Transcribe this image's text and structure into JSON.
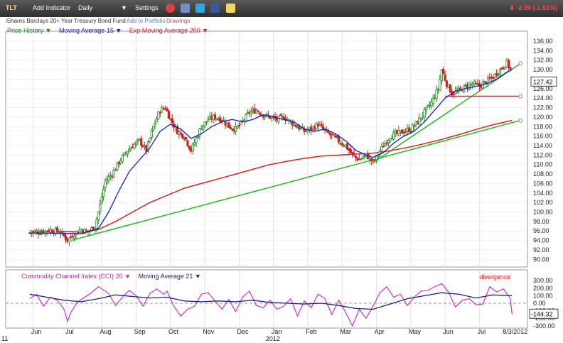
{
  "toolbar": {
    "symbol": "TLT",
    "add_indicator": "Add Indicator",
    "interval": "Daily",
    "interval_arrow": "▼",
    "settings": "Settings",
    "change": "-2.09 (-1.61%)",
    "change_arrow": "⬇",
    "icons": [
      "alarm-clock-icon",
      "compare-icon",
      "twitter-icon",
      "facebook-icon",
      "note-icon"
    ]
  },
  "subbar": {
    "description": "iShares Barclays 20+ Year Treasury Bond Fund",
    "add_portfolio": "Add to Portfolio",
    "drawings": "Drawings"
  },
  "legend_main": {
    "price_history": "Price History ▼",
    "ma15": "Moving Average 15 ▼",
    "ema200": "Exp Moving Average 200 ▼"
  },
  "legend_cci": {
    "cci": "Commodity Channel Index (CCI) 20 ▼",
    "ma21": "Moving Average 21 ▼"
  },
  "colors": {
    "price": "#1f8a1f",
    "ma15": "#1a1ad0",
    "ema200": "#e02020",
    "trend": "#22bb22",
    "cci": "#cc22cc",
    "cci_ma": "#202080",
    "down_candle": "#d02020"
  },
  "chart_data": [
    {
      "type": "line",
      "panel": "price",
      "series_label": "Price History",
      "y_ticks": [
        "136.00",
        "134.00",
        "132.00",
        "130.00",
        "128.00",
        "126.00",
        "124.00",
        "122.00",
        "120.00",
        "118.00",
        "116.00",
        "114.00",
        "112.00",
        "110.00",
        "108.00",
        "106.00",
        "104.00",
        "102.00",
        "100.00",
        "98.00",
        "96.00",
        "94.00",
        "92.00",
        "90.00"
      ],
      "ylim": [
        89,
        137.5
      ],
      "x_labels": [
        "Jun",
        "Jul",
        "Aug",
        "Sep",
        "Oct",
        "Nov",
        "Dec",
        "Jan",
        "Feb",
        "Mar",
        "Apr",
        "May",
        "Jun",
        "Jul",
        "8/3/2012"
      ],
      "x_label_months": [
        0,
        1,
        2,
        3,
        4,
        5,
        6,
        7,
        8,
        9,
        10,
        11,
        12,
        13,
        14.07
      ],
      "x_start_label": "11",
      "x_year_label": "2012",
      "last_price": "127.42",
      "price": [
        [
          0,
          95.6
        ],
        [
          0.3,
          95.8
        ],
        [
          0.6,
          96.2
        ],
        [
          0.9,
          95.7
        ],
        [
          1.1,
          94.1
        ],
        [
          1.3,
          95.5
        ],
        [
          1.5,
          96.3
        ],
        [
          1.7,
          95.8
        ],
        [
          1.9,
          97.0
        ],
        [
          2.05,
          101.5
        ],
        [
          2.2,
          106.5
        ],
        [
          2.4,
          108.0
        ],
        [
          2.6,
          110.5
        ],
        [
          2.8,
          112.5
        ],
        [
          3.0,
          114.0
        ],
        [
          3.2,
          115.0
        ],
        [
          3.4,
          113.0
        ],
        [
          3.6,
          118.0
        ],
        [
          3.8,
          121.5
        ],
        [
          3.95,
          122.0
        ],
        [
          4.1,
          119.5
        ],
        [
          4.3,
          117.0
        ],
        [
          4.5,
          116.0
        ],
        [
          4.7,
          113.0
        ],
        [
          4.85,
          115.5
        ],
        [
          5.0,
          118.0
        ],
        [
          5.2,
          119.5
        ],
        [
          5.4,
          120.0
        ],
        [
          5.6,
          119.5
        ],
        [
          5.8,
          118.0
        ],
        [
          6.0,
          117.5
        ],
        [
          6.2,
          119.0
        ],
        [
          6.4,
          121.0
        ],
        [
          6.6,
          121.5
        ],
        [
          6.8,
          120.5
        ],
        [
          7.0,
          120.0
        ],
        [
          7.2,
          119.5
        ],
        [
          7.4,
          120.0
        ],
        [
          7.6,
          119.0
        ],
        [
          7.8,
          118.0
        ],
        [
          8.0,
          117.0
        ],
        [
          8.2,
          117.5
        ],
        [
          8.4,
          118.5
        ],
        [
          8.6,
          117.0
        ],
        [
          8.8,
          116.0
        ],
        [
          9.0,
          115.0
        ],
        [
          9.2,
          114.0
        ],
        [
          9.4,
          112.0
        ],
        [
          9.6,
          111.0
        ],
        [
          9.8,
          112.0
        ],
        [
          10.0,
          110.5
        ],
        [
          10.1,
          111.5
        ],
        [
          10.3,
          114.0
        ],
        [
          10.5,
          116.0
        ],
        [
          10.7,
          116.5
        ],
        [
          10.9,
          117.0
        ],
        [
          11.1,
          117.5
        ],
        [
          11.3,
          119.0
        ],
        [
          11.5,
          121.0
        ],
        [
          11.7,
          123.0
        ],
        [
          11.9,
          126.0
        ],
        [
          12.0,
          130.0
        ],
        [
          12.15,
          127.0
        ],
        [
          12.3,
          125.0
        ],
        [
          12.5,
          125.5
        ],
        [
          12.7,
          126.5
        ],
        [
          12.9,
          127.0
        ],
        [
          13.1,
          126.5
        ],
        [
          13.3,
          127.5
        ],
        [
          13.5,
          128.5
        ],
        [
          13.7,
          130.0
        ],
        [
          13.9,
          131.5
        ],
        [
          14.0,
          130.0
        ],
        [
          14.05,
          127.4
        ]
      ],
      "ma15": [
        [
          0,
          95.6
        ],
        [
          1.0,
          95.5
        ],
        [
          1.5,
          95.4
        ],
        [
          2.0,
          96.5
        ],
        [
          2.3,
          100.0
        ],
        [
          2.6,
          104.5
        ],
        [
          2.9,
          108.5
        ],
        [
          3.2,
          111.0
        ],
        [
          3.5,
          113.5
        ],
        [
          3.8,
          117.0
        ],
        [
          4.1,
          118.5
        ],
        [
          4.4,
          117.5
        ],
        [
          4.7,
          115.5
        ],
        [
          5.0,
          116.5
        ],
        [
          5.3,
          118.0
        ],
        [
          5.6,
          119.0
        ],
        [
          5.9,
          119.5
        ],
        [
          6.2,
          119.0
        ],
        [
          6.5,
          119.5
        ],
        [
          6.8,
          120.5
        ],
        [
          7.1,
          120.0
        ],
        [
          7.4,
          119.5
        ],
        [
          7.7,
          119.0
        ],
        [
          8.0,
          117.5
        ],
        [
          8.3,
          117.0
        ],
        [
          8.6,
          117.5
        ],
        [
          8.9,
          116.5
        ],
        [
          9.2,
          115.0
        ],
        [
          9.5,
          113.0
        ],
        [
          9.8,
          112.0
        ],
        [
          10.0,
          111.5
        ],
        [
          10.3,
          112.5
        ],
        [
          10.6,
          114.5
        ],
        [
          10.9,
          116.0
        ],
        [
          11.2,
          117.0
        ],
        [
          11.5,
          119.0
        ],
        [
          11.8,
          121.5
        ],
        [
          12.1,
          124.0
        ],
        [
          12.4,
          125.5
        ],
        [
          12.7,
          126.0
        ],
        [
          13.0,
          126.5
        ],
        [
          13.3,
          127.0
        ],
        [
          13.6,
          128.0
        ],
        [
          13.9,
          129.5
        ],
        [
          14.05,
          130.0
        ]
      ],
      "ema200": [
        [
          0,
          96.0
        ],
        [
          1.0,
          95.9
        ],
        [
          1.5,
          95.8
        ],
        [
          2.0,
          96.3
        ],
        [
          2.5,
          98.0
        ],
        [
          3.0,
          100.0
        ],
        [
          3.5,
          102.0
        ],
        [
          4.0,
          103.5
        ],
        [
          4.5,
          105.0
        ],
        [
          5.0,
          106.0
        ],
        [
          5.5,
          107.0
        ],
        [
          6.0,
          108.0
        ],
        [
          6.5,
          109.0
        ],
        [
          7.0,
          110.0
        ],
        [
          7.5,
          110.7
        ],
        [
          8.0,
          111.3
        ],
        [
          8.5,
          111.8
        ],
        [
          9.0,
          112.0
        ],
        [
          9.5,
          112.2
        ],
        [
          10.0,
          112.4
        ],
        [
          10.5,
          112.9
        ],
        [
          11.0,
          113.6
        ],
        [
          11.5,
          114.4
        ],
        [
          12.0,
          115.3
        ],
        [
          12.5,
          116.3
        ],
        [
          13.0,
          117.4
        ],
        [
          13.5,
          118.4
        ],
        [
          14.05,
          119.3
        ]
      ],
      "trendlines": [
        {
          "from": [
            1.2,
            94.0
          ],
          "to": [
            14.3,
            119.3
          ]
        },
        {
          "from": [
            10.0,
            110.4
          ],
          "to": [
            14.3,
            131.3
          ]
        },
        {
          "from": [
            12.1,
            124.4
          ],
          "to": [
            14.3,
            124.4
          ]
        }
      ]
    },
    {
      "type": "line",
      "panel": "cci",
      "series_label": "Commodity Channel Index (CCI) 20",
      "y_ticks": [
        "300.00",
        "200.00",
        "100.00",
        "0.00",
        "-100.00",
        "-200.00",
        "-300.00"
      ],
      "ylim": [
        -330,
        330
      ],
      "last_value": "-144.32",
      "annotation": "divergence",
      "cci": [
        [
          0,
          60
        ],
        [
          0.2,
          120
        ],
        [
          0.4,
          -40
        ],
        [
          0.6,
          80
        ],
        [
          0.8,
          40
        ],
        [
          1.0,
          -80
        ],
        [
          1.1,
          -240
        ],
        [
          1.2,
          -120
        ],
        [
          1.4,
          20
        ],
        [
          1.6,
          80
        ],
        [
          1.8,
          140
        ],
        [
          2.0,
          220
        ],
        [
          2.1,
          190
        ],
        [
          2.3,
          130
        ],
        [
          2.5,
          -30
        ],
        [
          2.7,
          80
        ],
        [
          2.9,
          170
        ],
        [
          3.1,
          100
        ],
        [
          3.3,
          -40
        ],
        [
          3.5,
          130
        ],
        [
          3.7,
          190
        ],
        [
          3.9,
          120
        ],
        [
          4.0,
          160
        ],
        [
          4.2,
          -40
        ],
        [
          4.4,
          -170
        ],
        [
          4.6,
          -80
        ],
        [
          4.8,
          -40
        ],
        [
          5.0,
          120
        ],
        [
          5.2,
          140
        ],
        [
          5.4,
          30
        ],
        [
          5.6,
          -80
        ],
        [
          5.8,
          50
        ],
        [
          6.0,
          -110
        ],
        [
          6.2,
          80
        ],
        [
          6.4,
          160
        ],
        [
          6.6,
          -30
        ],
        [
          6.8,
          -60
        ],
        [
          7.0,
          40
        ],
        [
          7.2,
          -80
        ],
        [
          7.4,
          -40
        ],
        [
          7.6,
          60
        ],
        [
          7.8,
          -170
        ],
        [
          8.0,
          30
        ],
        [
          8.2,
          -60
        ],
        [
          8.4,
          120
        ],
        [
          8.6,
          60
        ],
        [
          8.8,
          -150
        ],
        [
          9.0,
          40
        ],
        [
          9.2,
          -120
        ],
        [
          9.4,
          -300
        ],
        [
          9.6,
          -80
        ],
        [
          9.8,
          -200
        ],
        [
          10.0,
          -40
        ],
        [
          10.2,
          140
        ],
        [
          10.4,
          220
        ],
        [
          10.6,
          80
        ],
        [
          10.8,
          120
        ],
        [
          11.0,
          -30
        ],
        [
          11.2,
          80
        ],
        [
          11.4,
          160
        ],
        [
          11.6,
          170
        ],
        [
          11.8,
          220
        ],
        [
          12.0,
          260
        ],
        [
          12.2,
          150
        ],
        [
          12.4,
          -50
        ],
        [
          12.6,
          40
        ],
        [
          12.8,
          60
        ],
        [
          13.0,
          -20
        ],
        [
          13.2,
          -10
        ],
        [
          13.4,
          220
        ],
        [
          13.6,
          150
        ],
        [
          13.8,
          190
        ],
        [
          14.0,
          60
        ],
        [
          14.05,
          -144
        ]
      ],
      "cci_ma": [
        [
          0,
          120
        ],
        [
          0.5,
          80
        ],
        [
          1.0,
          40
        ],
        [
          1.5,
          20
        ],
        [
          2.0,
          60
        ],
        [
          2.5,
          110
        ],
        [
          3.0,
          90
        ],
        [
          3.5,
          70
        ],
        [
          4.0,
          80
        ],
        [
          4.5,
          30
        ],
        [
          5.0,
          20
        ],
        [
          5.5,
          30
        ],
        [
          6.0,
          20
        ],
        [
          6.5,
          40
        ],
        [
          7.0,
          10
        ],
        [
          7.5,
          0
        ],
        [
          8.0,
          -10
        ],
        [
          8.5,
          0
        ],
        [
          9.0,
          -30
        ],
        [
          9.5,
          -70
        ],
        [
          10.0,
          -80
        ],
        [
          10.5,
          -10
        ],
        [
          11.0,
          60
        ],
        [
          11.5,
          100
        ],
        [
          12.0,
          140
        ],
        [
          12.5,
          120
        ],
        [
          13.0,
          70
        ],
        [
          13.5,
          110
        ],
        [
          14.05,
          100
        ]
      ]
    }
  ]
}
